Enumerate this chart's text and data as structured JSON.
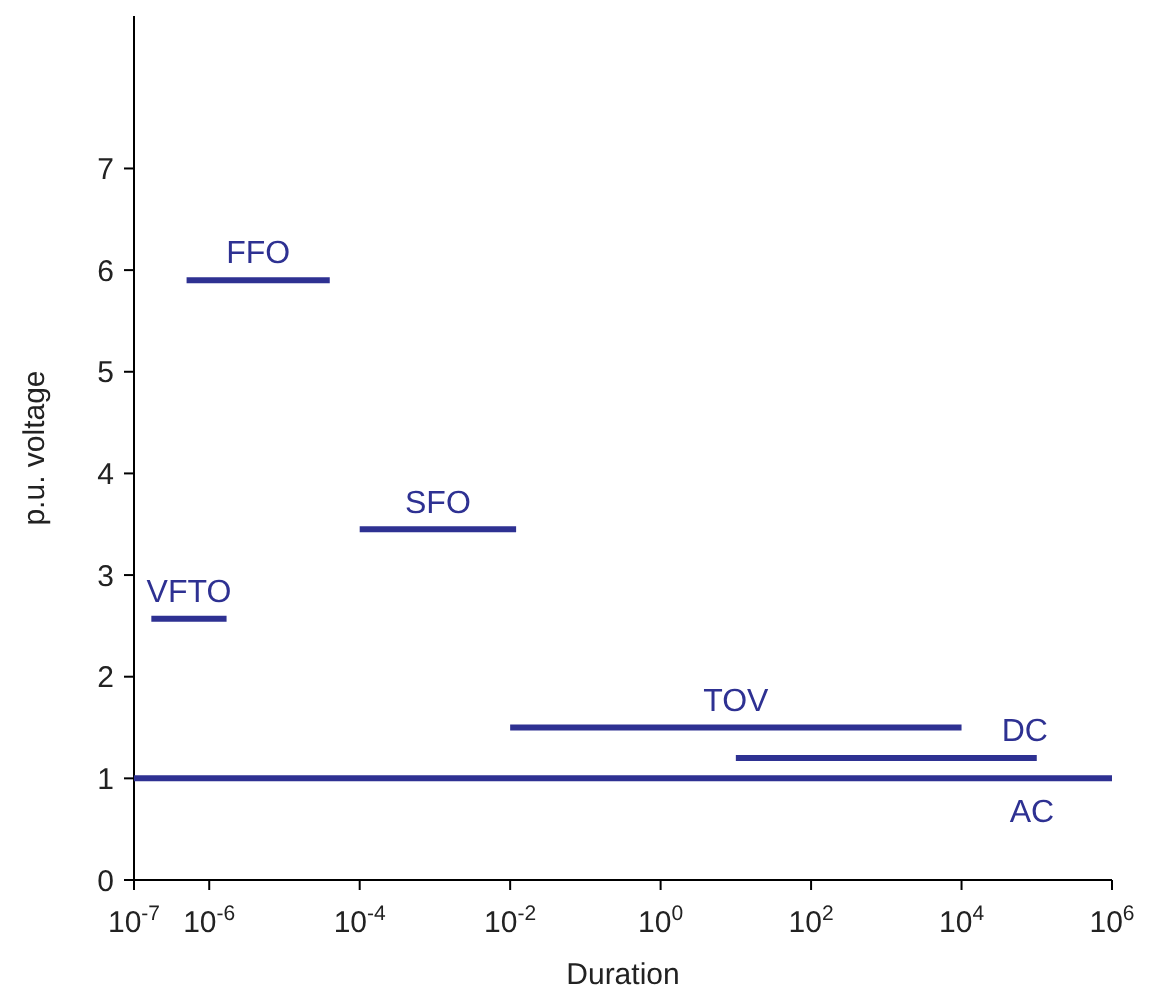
{
  "chart_data": {
    "type": "line",
    "xlabel": "Duration",
    "ylabel": "p.u. voltage",
    "log": "x",
    "grid": false,
    "line_style": "solid",
    "xlim": [
      1e-07,
      1000000.0
    ],
    "ylim": [
      0,
      8.5
    ],
    "xticks": [
      {
        "value": 1e-07,
        "label": "10$^{-7}$"
      },
      {
        "value": 1e-06,
        "label": "10$^{-6}$"
      },
      {
        "value": 0.0001,
        "label": "10$^{-4}$"
      },
      {
        "value": 0.01,
        "label": "10$^{-2}$"
      },
      {
        "value": 1,
        "label": "10$^{0}$"
      },
      {
        "value": 100,
        "label": "10$^{2}$"
      },
      {
        "value": 10000,
        "label": "10$^{4}$"
      },
      {
        "value": 1000000,
        "label": "10$^{6}$"
      }
    ],
    "yticks": [
      0,
      1,
      2,
      3,
      4,
      5,
      6,
      7
    ],
    "series": [
      {
        "name": "FFO",
        "color": "#2e3192",
        "x": [
          5e-07,
          4e-05
        ],
        "values": [
          5.9,
          5.9
        ]
      },
      {
        "name": "SFO",
        "color": "#2e3192",
        "x": [
          0.0001,
          0.012
        ],
        "values": [
          3.45,
          3.45
        ]
      },
      {
        "name": "VFTO",
        "color": "#2e3192",
        "x": [
          1.7e-07,
          1.7e-06
        ],
        "values": [
          2.57,
          2.57
        ]
      },
      {
        "name": "TOV",
        "color": "#2e3192",
        "x": [
          0.01,
          10000.0
        ],
        "values": [
          1.5,
          1.5
        ]
      },
      {
        "name": "DC",
        "color": "#2e3192",
        "x": [
          10,
          100000.0
        ],
        "values": [
          1.2,
          1.2
        ]
      },
      {
        "name": "AC",
        "color": "#2e3192",
        "x": [
          1e-07,
          1000000.0
        ],
        "values": [
          1,
          1
        ]
      }
    ]
  }
}
